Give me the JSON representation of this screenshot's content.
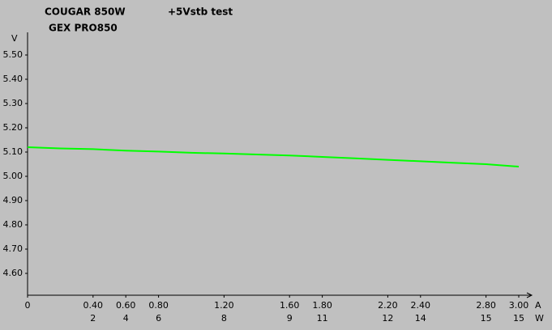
{
  "chart_data": {
    "type": "line",
    "title": "+5Vstb test",
    "model": "COUGAR 850W",
    "submodel": "GEX PRO850",
    "y_unit": "V",
    "x_unit": "A",
    "x2_unit": "W",
    "x": [
      0,
      0.2,
      0.4,
      0.6,
      0.8,
      1.0,
      1.2,
      1.4,
      1.6,
      1.8,
      2.0,
      2.2,
      2.4,
      2.6,
      2.8,
      3.0
    ],
    "series": [
      {
        "name": "+5Vstb",
        "color": "#00ff00",
        "values": [
          5.12,
          5.115,
          5.112,
          5.106,
          5.102,
          5.097,
          5.094,
          5.09,
          5.086,
          5.08,
          5.074,
          5.068,
          5.062,
          5.056,
          5.05,
          5.04
        ]
      }
    ],
    "xlim": [
      0,
      3.0
    ],
    "xticks": [
      0,
      {
        "value": 0.4,
        "label": "0.40"
      },
      {
        "value": 0.6,
        "label": "0.60"
      },
      {
        "value": 0.8,
        "label": "0.80"
      },
      {
        "value": 1.2,
        "label": "1.20"
      },
      {
        "value": 1.6,
        "label": "1.60"
      },
      {
        "value": 1.8,
        "label": "1.80"
      },
      {
        "value": 2.2,
        "label": "2.20"
      },
      {
        "value": 2.4,
        "label": "2.40"
      },
      {
        "value": 2.8,
        "label": "2.80"
      },
      {
        "value": 3.0,
        "label": "3.00"
      }
    ],
    "x2ticks": [
      null,
      2,
      4,
      6,
      8,
      9,
      11,
      12,
      14,
      15,
      15
    ],
    "ylim": [
      4.51,
      5.6
    ],
    "yticks": [
      {
        "value": 4.6,
        "label": "4.60"
      },
      {
        "value": 4.7,
        "label": "4.70"
      },
      {
        "value": 4.8,
        "label": "4.80"
      },
      {
        "value": 4.9,
        "label": "4.90"
      },
      {
        "value": 5.0,
        "label": "5.00"
      },
      {
        "value": 5.1,
        "label": "5.10"
      },
      {
        "value": 5.2,
        "label": "5.20"
      },
      {
        "value": 5.3,
        "label": "5.30"
      },
      {
        "value": 5.4,
        "label": "5.40"
      },
      {
        "value": 5.5,
        "label": "5.50"
      }
    ]
  }
}
